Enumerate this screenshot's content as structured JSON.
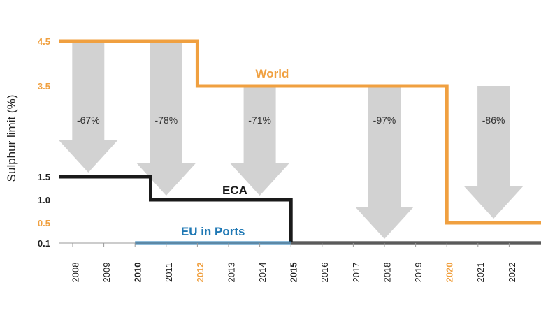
{
  "chart_data": {
    "type": "line",
    "step": true,
    "title": "",
    "xlabel": "",
    "ylabel": "Sulphur limit (%)",
    "x_categories": [
      "2008",
      "2009",
      "2010",
      "2011",
      "2012",
      "2013",
      "2014",
      "2015",
      "2016",
      "2017",
      "2018",
      "2019",
      "2020",
      "2021",
      "2022"
    ],
    "x_highlight": {
      "bold": [
        "2010",
        "2015"
      ],
      "orange": [
        "2012",
        "2020"
      ]
    },
    "y_ticks": [
      {
        "value": 4.5,
        "label": "4.5",
        "color": "#F0A040"
      },
      {
        "value": 3.5,
        "label": "3.5",
        "color": "#F0A040"
      },
      {
        "value": 1.5,
        "label": "1.5",
        "color": "#222222"
      },
      {
        "value": 1.0,
        "label": "1.0",
        "color": "#222222"
      },
      {
        "value": 0.5,
        "label": "0.5",
        "color": "#F0A040"
      },
      {
        "value": 0.1,
        "label": "0.1",
        "color": "#222222"
      }
    ],
    "y_scale": "non-linear (custom)",
    "series": [
      {
        "name": "World",
        "color": "#F0A040",
        "steps": [
          {
            "from": "2008",
            "to": "2012",
            "value": 4.5
          },
          {
            "from": "2012",
            "to": "2020",
            "value": 3.5
          },
          {
            "from": "2020",
            "to": "2022",
            "value": 0.5
          }
        ]
      },
      {
        "name": "ECA",
        "color": "#1A1A1A",
        "steps": [
          {
            "from": "2008",
            "to": "2010.5",
            "value": 1.5
          },
          {
            "from": "2010.5",
            "to": "2015",
            "value": 1.0
          },
          {
            "from": "2015",
            "to": "2022",
            "value": 0.1
          }
        ]
      },
      {
        "name": "EU in Ports",
        "color": "#1F78B4",
        "steps": [
          {
            "from": "2010",
            "to": "2015",
            "value": 0.1
          }
        ]
      }
    ],
    "reduction_arrows": [
      {
        "label": "-67%",
        "year": "2008.5",
        "from": 4.5,
        "to": 1.5
      },
      {
        "label": "-78%",
        "year": "2011",
        "from": 4.5,
        "to": 1.0
      },
      {
        "label": "-71%",
        "year": "2014",
        "from": 3.5,
        "to": 1.0
      },
      {
        "label": "-97%",
        "year": "2018",
        "from": 3.5,
        "to": 0.1
      },
      {
        "label": "-86%",
        "year": "2021.5",
        "from": 3.5,
        "to": 0.5
      }
    ],
    "grid": false,
    "legend": "inline labels"
  }
}
